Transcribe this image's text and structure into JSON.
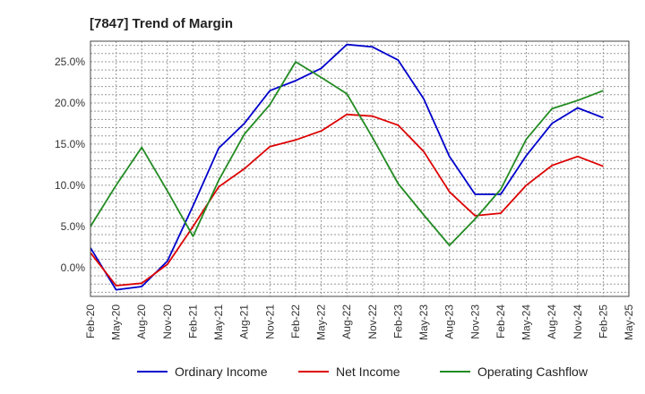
{
  "chart_data": {
    "type": "line",
    "title": "[7847]  Trend of Margin",
    "xlabel": "",
    "ylabel": "",
    "categories": [
      "Feb-20",
      "May-20",
      "Aug-20",
      "Nov-20",
      "Feb-21",
      "May-21",
      "Aug-21",
      "Nov-21",
      "Feb-22",
      "May-22",
      "Aug-22",
      "Nov-22",
      "Feb-23",
      "May-23",
      "Aug-23",
      "Nov-23",
      "Feb-24",
      "May-24",
      "Aug-24",
      "Nov-24",
      "Feb-25",
      "May-25"
    ],
    "ylim": [
      -3.5,
      27.5
    ],
    "yticks": [
      0,
      5,
      10,
      15,
      20,
      25
    ],
    "ytick_labels": [
      "0.0%",
      "5.0%",
      "10.0%",
      "15.0%",
      "20.0%",
      "25.0%"
    ],
    "grid": true,
    "legend_position": "bottom",
    "series": [
      {
        "name": "Ordinary Income",
        "color": "#0000cc",
        "values": [
          2.4,
          -2.7,
          -2.3,
          0.8,
          7.5,
          14.5,
          17.5,
          21.5,
          22.7,
          24.2,
          27.1,
          26.8,
          25.2,
          20.5,
          13.5,
          8.9,
          8.9,
          13.6,
          17.5,
          19.4,
          18.2,
          null
        ]
      },
      {
        "name": "Net Income",
        "color": "#dd0000",
        "values": [
          1.8,
          -2.2,
          -1.9,
          0.4,
          5.0,
          9.8,
          12.0,
          14.7,
          15.5,
          16.6,
          18.6,
          18.4,
          17.3,
          14.1,
          9.2,
          6.3,
          6.6,
          10.0,
          12.4,
          13.5,
          12.3,
          null
        ]
      },
      {
        "name": "Operating Cashflow",
        "color": "#228b22",
        "values": [
          5.0,
          10.0,
          14.6,
          9.3,
          3.8,
          10.6,
          16.2,
          19.8,
          25.0,
          23.1,
          21.1,
          15.8,
          10.2,
          6.4,
          2.7,
          5.9,
          9.5,
          15.6,
          19.3,
          20.3,
          21.5,
          null
        ]
      }
    ]
  }
}
